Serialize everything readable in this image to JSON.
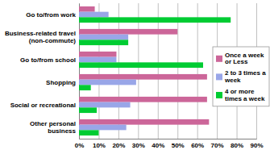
{
  "chart_data": {
    "type": "bar",
    "orientation": "horizontal",
    "categories": [
      "Go to/from work",
      "Business-related travel (non-commute)",
      "Go to/from school",
      "Shopping",
      "Social or recreational",
      "Other personal business"
    ],
    "series": [
      {
        "name": "Once a week or Less",
        "color": "#cc6699",
        "values": [
          8,
          50,
          19,
          65,
          65,
          66
        ]
      },
      {
        "name": "2 to 3 times a week",
        "color": "#99a6e8",
        "values": [
          15,
          25,
          19,
          29,
          26,
          24
        ]
      },
      {
        "name": "4 or more times a week",
        "color": "#00cc33",
        "values": [
          77,
          25,
          63,
          6,
          9,
          10
        ]
      }
    ],
    "xlim": [
      0,
      90
    ],
    "xticks": [
      {
        "value": 0,
        "label": "0%"
      },
      {
        "value": 10,
        "label": "10%"
      },
      {
        "value": 20,
        "label": "20%"
      },
      {
        "value": 30,
        "label": "30%"
      },
      {
        "value": 40,
        "label": "40%"
      },
      {
        "value": 50,
        "label": "50%"
      },
      {
        "value": 60,
        "label": "60%"
      },
      {
        "value": 70,
        "label": "70%"
      },
      {
        "value": 80,
        "label": "80%"
      },
      {
        "value": 90,
        "label": "90%"
      }
    ],
    "grid": true,
    "legend": "right"
  }
}
